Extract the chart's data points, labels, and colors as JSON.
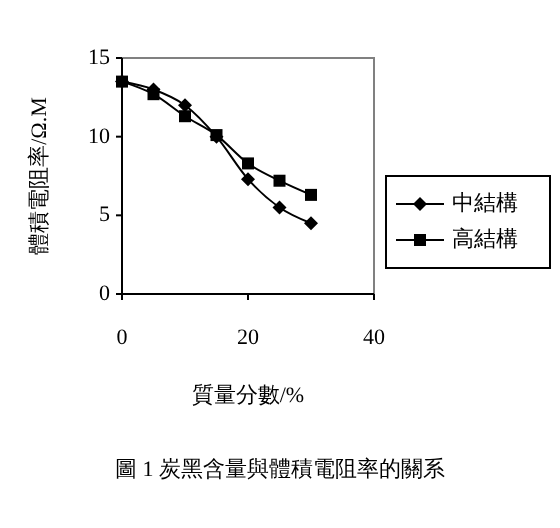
{
  "chart_data": {
    "type": "line",
    "xlabel": "質量分數/%",
    "ylabel": "體積電阻率/Ω.M",
    "annotations": [
      "圖 1  炭黑含量與體積電阻率的關系"
    ],
    "x": [
      0,
      5,
      10,
      15,
      20,
      25,
      30
    ],
    "series": [
      {
        "name": "中結構",
        "color": "#000000",
        "marker": "diamond",
        "values": [
          13.5,
          13.0,
          12.0,
          10.0,
          7.3,
          5.5,
          4.5
        ]
      },
      {
        "name": "高結構",
        "color": "#000000",
        "marker": "square",
        "values": [
          13.5,
          12.7,
          11.3,
          10.1,
          8.3,
          7.2,
          6.3
        ]
      }
    ],
    "xlim": [
      0,
      40
    ],
    "xticks": [
      0,
      20,
      40
    ],
    "ylim": [
      0,
      15
    ],
    "yticks": [
      0,
      5,
      10,
      15
    ],
    "grid": false,
    "legend": "right",
    "line_style": "solid"
  }
}
